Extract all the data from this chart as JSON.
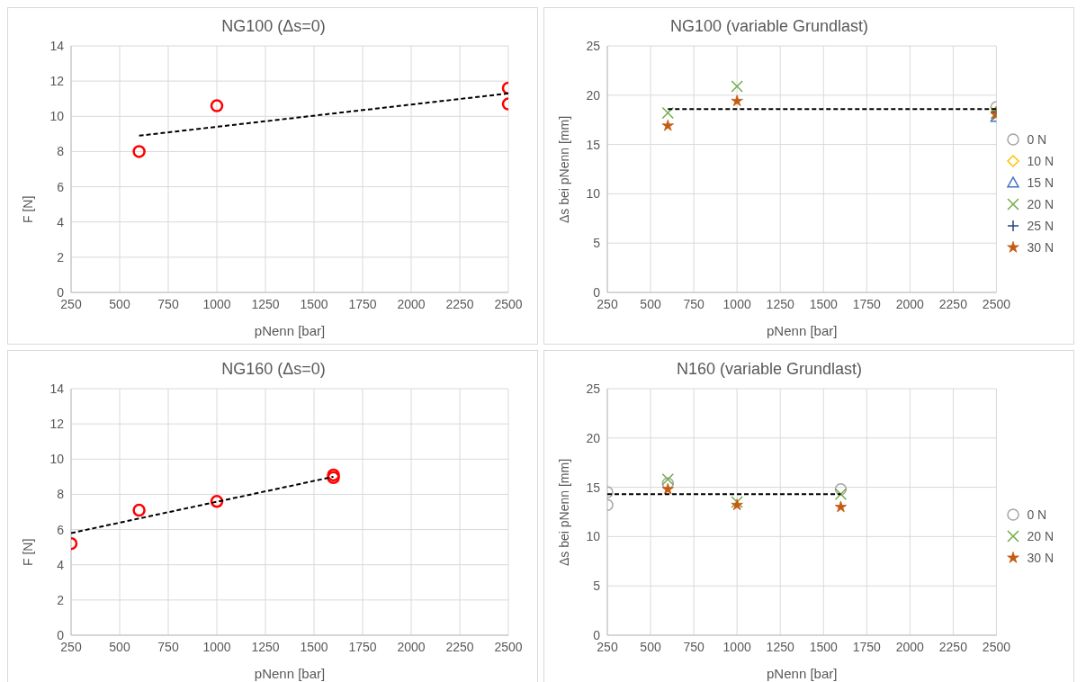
{
  "chart_data": [
    {
      "type": "scatter",
      "title": "NG100 (Δs=0)",
      "xlabel": "pNenn [bar]",
      "ylabel": "F [N]",
      "xlim": [
        250,
        2500
      ],
      "xticks": [
        250,
        500,
        750,
        1000,
        1250,
        1500,
        1750,
        2000,
        2250,
        2500
      ],
      "ylim": [
        0,
        14
      ],
      "yticks": [
        0,
        2,
        4,
        6,
        8,
        10,
        12,
        14
      ],
      "grid": true,
      "marker": "circle",
      "series": [
        {
          "color": "#ff0000",
          "x": [
            600,
            1000,
            2500,
            2500
          ],
          "values": [
            8.0,
            10.6,
            11.6,
            10.7
          ]
        },
        {
          "type": "line",
          "color": "#000000",
          "line_style": "dashed",
          "marker": "none",
          "x": [
            600,
            2500
          ],
          "values": [
            8.9,
            11.3
          ]
        }
      ]
    },
    {
      "type": "scatter",
      "title": "NG100 (variable Grundlast)",
      "xlabel": "pNenn [bar]",
      "ylabel": "Δs bei pNenn [mm]",
      "xlim": [
        250,
        2500
      ],
      "xticks": [
        250,
        500,
        750,
        1000,
        1250,
        1500,
        1750,
        2000,
        2250,
        2500
      ],
      "ylim": [
        0,
        25
      ],
      "yticks": [
        0,
        5,
        10,
        15,
        20,
        25
      ],
      "grid": true,
      "legend": "right",
      "series": [
        {
          "name": "0 N",
          "color": "#a5a5a5",
          "marker": "circle",
          "x": [
            2500
          ],
          "values": [
            18.8
          ]
        },
        {
          "name": "10 N",
          "color": "#ffc000",
          "marker": "diamond",
          "x": [
            2500
          ],
          "values": [
            18.3
          ]
        },
        {
          "name": "15 N",
          "color": "#4472c4",
          "marker": "triangle",
          "x": [
            2500
          ],
          "values": [
            17.8
          ]
        },
        {
          "name": "20 N",
          "color": "#70ad47",
          "marker": "cross",
          "x": [
            600,
            1000,
            2500
          ],
          "values": [
            18.2,
            20.9,
            18.2
          ]
        },
        {
          "name": "25 N",
          "color": "#264478",
          "marker": "plus",
          "x": [
            2500
          ],
          "values": [
            18.3
          ]
        },
        {
          "name": "30 N",
          "color": "#c55a11",
          "marker": "star",
          "x": [
            600,
            1000,
            2500
          ],
          "values": [
            16.9,
            19.4,
            18.0
          ]
        },
        {
          "type": "line",
          "color": "#000000",
          "line_style": "dashed",
          "marker": "none",
          "x": [
            600,
            2500
          ],
          "values": [
            18.6,
            18.6
          ]
        }
      ]
    },
    {
      "type": "scatter",
      "title": "NG160 (Δs=0)",
      "xlabel": "pNenn [bar]",
      "ylabel": "F [N]",
      "xlim": [
        250,
        2500
      ],
      "xticks": [
        250,
        500,
        750,
        1000,
        1250,
        1500,
        1750,
        2000,
        2250,
        2500
      ],
      "ylim": [
        0,
        14
      ],
      "yticks": [
        0,
        2,
        4,
        6,
        8,
        10,
        12,
        14
      ],
      "grid": true,
      "marker": "circle",
      "series": [
        {
          "color": "#ff0000",
          "x": [
            250,
            600,
            1000,
            1600,
            1600
          ],
          "values": [
            5.2,
            7.1,
            7.6,
            9.1,
            8.95
          ]
        },
        {
          "type": "line",
          "color": "#000000",
          "line_style": "dashed",
          "marker": "none",
          "x": [
            250,
            1600
          ],
          "values": [
            5.8,
            9.0
          ]
        }
      ]
    },
    {
      "type": "scatter",
      "title": "N160 (variable Grundlast)",
      "xlabel": "pNenn [bar]",
      "ylabel": "Δs bei pNenn [mm]",
      "xlim": [
        250,
        2500
      ],
      "xticks": [
        250,
        500,
        750,
        1000,
        1250,
        1500,
        1750,
        2000,
        2250,
        2500
      ],
      "ylim": [
        0,
        25
      ],
      "yticks": [
        0,
        5,
        10,
        15,
        20,
        25
      ],
      "grid": true,
      "legend": "right",
      "series": [
        {
          "name": "0 N",
          "color": "#a5a5a5",
          "marker": "circle",
          "x": [
            250,
            250,
            600,
            1600
          ],
          "values": [
            14.5,
            13.2,
            15.4,
            14.8
          ]
        },
        {
          "name": "20 N",
          "color": "#70ad47",
          "marker": "cross",
          "x": [
            600,
            1000,
            1600
          ],
          "values": [
            15.8,
            13.5,
            14.3
          ]
        },
        {
          "name": "30 N",
          "color": "#c55a11",
          "marker": "star",
          "x": [
            600,
            1000,
            1600
          ],
          "values": [
            14.8,
            13.2,
            13.0
          ]
        },
        {
          "type": "line",
          "color": "#000000",
          "line_style": "dashed",
          "marker": "none",
          "x": [
            250,
            1600
          ],
          "values": [
            14.3,
            14.3
          ]
        }
      ]
    }
  ]
}
